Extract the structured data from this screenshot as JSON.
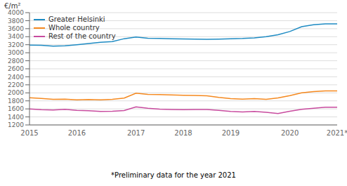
{
  "chart_data": {
    "type": "line",
    "y_label": "€/m²",
    "annotations": [
      "*Preliminary data for the year 2021"
    ],
    "categories": [
      "2015",
      null,
      null,
      null,
      "2016",
      null,
      null,
      null,
      null,
      "2017",
      null,
      null,
      null,
      "2018",
      null,
      null,
      null,
      "2019",
      null,
      null,
      null,
      null,
      "2020",
      null,
      null,
      null,
      "2021*"
    ],
    "series": [
      {
        "name": "Greater Helsinki",
        "color": "#1e8bc3",
        "values": [
          3190,
          3185,
          3165,
          3175,
          3200,
          3230,
          3260,
          3280,
          3350,
          3390,
          3360,
          3355,
          3350,
          3345,
          3340,
          3335,
          3340,
          3350,
          3355,
          3370,
          3400,
          3450,
          3530,
          3650,
          3700,
          3720,
          3720
        ]
      },
      {
        "name": "Whole country",
        "color": "#f5891f",
        "values": [
          1880,
          1860,
          1840,
          1845,
          1825,
          1835,
          1825,
          1840,
          1870,
          1990,
          1960,
          1955,
          1950,
          1940,
          1935,
          1925,
          1885,
          1855,
          1845,
          1855,
          1840,
          1875,
          1930,
          2000,
          2030,
          2050,
          2050
        ]
      },
      {
        "name": "Rest of the country",
        "color": "#c84b9e",
        "values": [
          1600,
          1580,
          1570,
          1590,
          1565,
          1555,
          1535,
          1540,
          1560,
          1650,
          1615,
          1595,
          1585,
          1580,
          1585,
          1585,
          1565,
          1535,
          1525,
          1535,
          1515,
          1485,
          1540,
          1590,
          1615,
          1640,
          1640
        ]
      }
    ],
    "ylim": [
      1200,
      4000
    ],
    "yticks": [
      1200,
      1400,
      1600,
      1800,
      2000,
      2200,
      2400,
      2600,
      2800,
      3000,
      3200,
      3400,
      3600,
      3800,
      4000
    ],
    "grid": true,
    "legend": "upper left"
  }
}
